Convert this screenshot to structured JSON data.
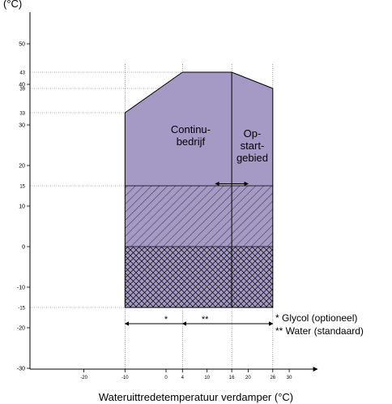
{
  "chart_data": {
    "type": "area",
    "y_unit_label": "(°C)",
    "xlabel": "Wateruittredetemperatuur verdamper (°C)",
    "xlim": [
      -30,
      38
    ],
    "ylim": [
      -30,
      58
    ],
    "x_ticks": [
      -20,
      -10,
      0,
      10,
      20,
      30
    ],
    "x_ref_ticks": [
      4,
      16,
      26
    ],
    "y_ticks": [
      -30,
      -20,
      -10,
      0,
      10,
      20,
      30,
      40,
      50
    ],
    "y_ref_ticks": [
      -15,
      15,
      33,
      39,
      43
    ],
    "envelope": {
      "x": [
        -10,
        -10,
        4,
        16,
        26,
        26
      ],
      "y": [
        -15,
        33,
        43,
        43,
        39,
        -15
      ]
    },
    "divider_x": 16,
    "hatch_regions": [
      {
        "style": "diagonal",
        "y_from": 0,
        "y_to": 15
      },
      {
        "style": "crosshatch",
        "y_from": -15,
        "y_to": 0
      }
    ],
    "range_arrows": [
      {
        "from": -10,
        "to": 26,
        "y": -19,
        "label": "*",
        "label_x": 0
      },
      {
        "from": 4,
        "to": 26,
        "y": -19,
        "label": "**",
        "label_x": 9.5
      }
    ],
    "startup_arrow": {
      "from": 12,
      "to": 20,
      "y": 15.5
    },
    "regions": [
      {
        "label_lines": [
          "Continu-",
          "bedrijf"
        ],
        "x": 6,
        "y": 28
      },
      {
        "label_lines": [
          "Op-",
          "start-",
          "gebied"
        ],
        "x": 21,
        "y": 27
      }
    ],
    "legend": [
      "* Glycol (optioneel)",
      "** Water (standaard)"
    ],
    "colors": {
      "fill": "#a59ac5",
      "line": "#000000",
      "guide": "#444444"
    }
  }
}
